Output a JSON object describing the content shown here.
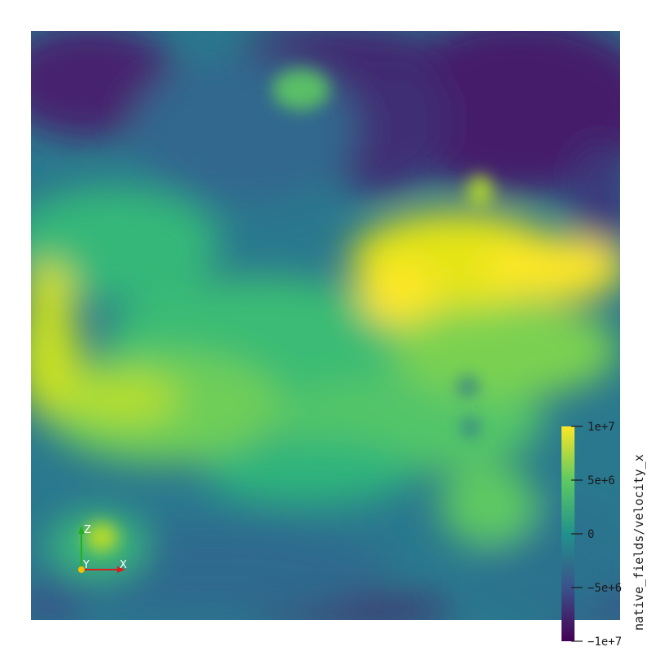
{
  "colorbar": {
    "title": "native_fields/velocity_x",
    "ticks": [
      {
        "value": 10000000,
        "label": "1e+7"
      },
      {
        "value": 5000000,
        "label": "5e+6"
      },
      {
        "value": 0,
        "label": "0"
      },
      {
        "value": -5000000,
        "label": "−5e+6"
      },
      {
        "value": -10000000,
        "label": "−1e+7"
      }
    ],
    "range": [
      -10000000,
      10000000
    ],
    "colormap": "viridis",
    "colors": [
      "#440154",
      "#3b528b",
      "#21918c",
      "#5ec962",
      "#fde725"
    ]
  },
  "orientation_axes": {
    "x_label": "X",
    "y_label": "Y",
    "z_label": "Z",
    "x_color": "#d62020",
    "y_color": "#f2c200",
    "z_color": "#20b020"
  },
  "field": {
    "name": "velocity_x",
    "background_color": "#ffffff"
  }
}
